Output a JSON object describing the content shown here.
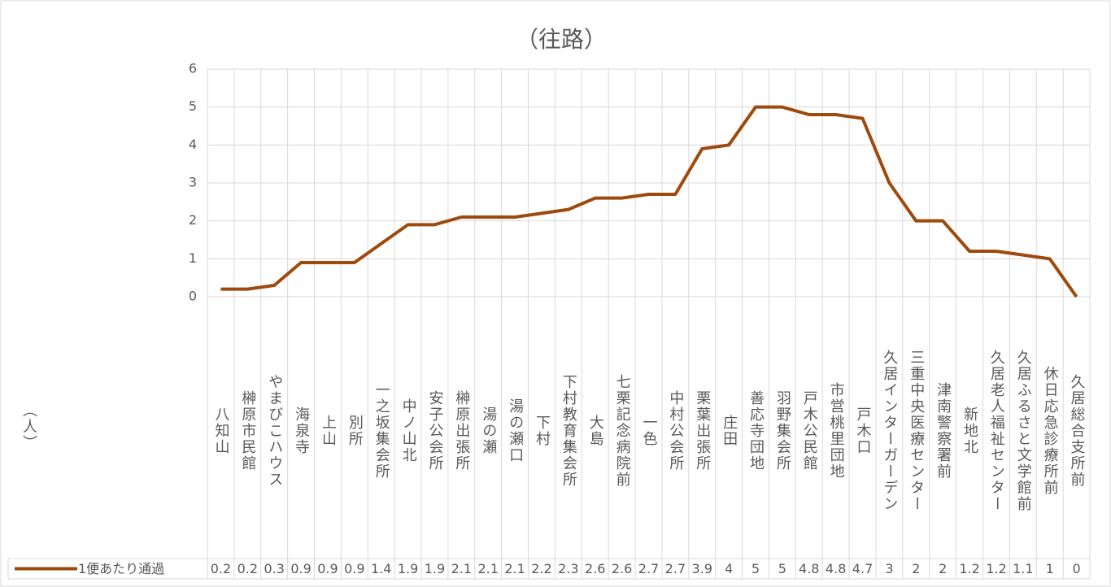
{
  "chart_data": {
    "type": "line",
    "title": "（往路）",
    "y_label": "（人）",
    "categories": [
      "八知山",
      "榊原市民館",
      "やまびこハウス",
      "海泉寺",
      "上山",
      "別所",
      "一之坂集会所",
      "中ノ山北",
      "安子公会所",
      "榊原出張所",
      "湯の瀬",
      "湯の瀬口",
      "下村",
      "下村教育集会所",
      "大島",
      "七栗記念病院前",
      "一色",
      "中村公会所",
      "栗葉出張所",
      "庄田",
      "善応寺団地",
      "羽野集会所",
      "戸木公民館",
      "市営桃里団地",
      "戸木口",
      "久居インターガーデン",
      "三重中央医療センター",
      "津南警察署前",
      "新地北",
      "久居老人福祉センター",
      "久居ふるさと文学館前",
      "休日応急診療所前",
      "久居総合支所前"
    ],
    "series": [
      {
        "name": "1便あたり通過",
        "color": "#9e4a0d",
        "values": [
          0.2,
          0.2,
          0.3,
          0.9,
          0.9,
          0.9,
          1.4,
          1.9,
          1.9,
          2.1,
          2.1,
          2.1,
          2.2,
          2.3,
          2.6,
          2.6,
          2.7,
          2.7,
          3.9,
          4,
          5,
          5,
          4.8,
          4.8,
          4.7,
          3,
          2,
          2,
          1.2,
          1.2,
          1.1,
          1,
          0
        ]
      }
    ],
    "ylim": [
      0,
      6
    ],
    "yticks": [
      0,
      1,
      2,
      3,
      4,
      5,
      6
    ],
    "grid": true,
    "data_table": true
  }
}
